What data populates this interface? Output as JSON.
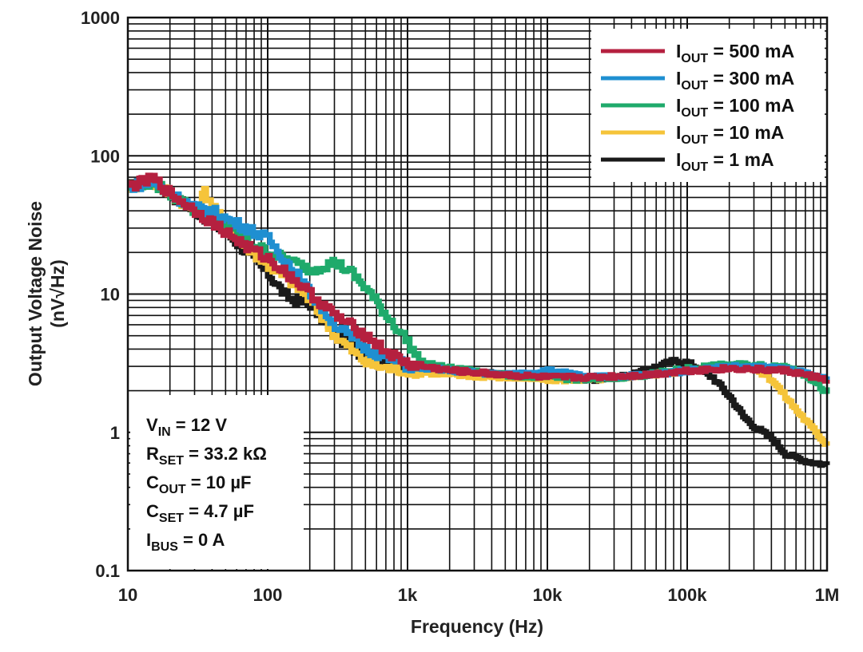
{
  "chart_data": {
    "type": "line",
    "xscale": "log",
    "yscale": "log",
    "xlim": [
      10,
      1000000
    ],
    "ylim": [
      0.1,
      1000
    ],
    "grid": true,
    "legend_position": "top-right",
    "xlabel": "Frequency (Hz)",
    "ylabel_line1": "Output Voltage Noise",
    "ylabel_line2_pre": "(nV",
    "ylabel_line2_post": "Hz)",
    "x_ticks": [
      {
        "value": 10,
        "label": "10"
      },
      {
        "value": 100,
        "label": "100"
      },
      {
        "value": 1000,
        "label": "1k"
      },
      {
        "value": 10000,
        "label": "10k"
      },
      {
        "value": 100000,
        "label": "100k"
      },
      {
        "value": 1000000,
        "label": "1M"
      }
    ],
    "y_ticks": [
      {
        "value": 0.1,
        "label": "0.1"
      },
      {
        "value": 1,
        "label": "1"
      },
      {
        "value": 10,
        "label": "10"
      },
      {
        "value": 100,
        "label": "100"
      },
      {
        "value": 1000,
        "label": "1000"
      }
    ],
    "series": [
      {
        "name": "IOUT = 1 mA",
        "name_main": "I",
        "name_sub": "OUT",
        "name_rest": " = 1 mA",
        "color": "#1a1a1a",
        "x": [
          10,
          15,
          20,
          30,
          50,
          70,
          100,
          130,
          150,
          200,
          300,
          500,
          700,
          1000,
          2000,
          5000,
          10000,
          20000,
          40000,
          60000,
          80000,
          100000,
          150000,
          200000,
          250000,
          300000,
          400000,
          500000,
          700000,
          1000000
        ],
        "y": [
          60,
          65,
          52,
          40,
          28,
          20,
          14,
          10,
          9,
          8.5,
          5,
          3.5,
          3.2,
          2.9,
          2.8,
          2.6,
          2.5,
          2.4,
          2.6,
          3.0,
          3.3,
          3.2,
          2.5,
          1.8,
          1.3,
          1.1,
          0.9,
          0.7,
          0.62,
          0.58
        ]
      },
      {
        "name": "IOUT = 10 mA",
        "name_main": "I",
        "name_sub": "OUT",
        "name_rest": " = 10 mA",
        "color": "#f5c43a",
        "x": [
          10,
          15,
          20,
          30,
          35,
          50,
          70,
          100,
          150,
          200,
          300,
          500,
          700,
          1000,
          2000,
          5000,
          10000,
          20000,
          50000,
          100000,
          200000,
          300000,
          400000,
          500000,
          700000,
          1000000
        ],
        "y": [
          60,
          64,
          53,
          40,
          55,
          30,
          22,
          16,
          12,
          9,
          5,
          3.2,
          2.9,
          2.8,
          2.6,
          2.5,
          2.4,
          2.4,
          2.6,
          2.8,
          3.0,
          2.9,
          2.4,
          1.8,
          1.2,
          0.8
        ]
      },
      {
        "name": "IOUT = 100 mA",
        "name_main": "I",
        "name_sub": "OUT",
        "name_rest": " = 100 mA",
        "color": "#1faa6b",
        "x": [
          10,
          15,
          20,
          30,
          50,
          70,
          100,
          150,
          200,
          300,
          400,
          500,
          700,
          1000,
          1200,
          2000,
          5000,
          10000,
          20000,
          50000,
          100000,
          200000,
          500000,
          700000,
          1000000
        ],
        "y": [
          60,
          64,
          53,
          40,
          32,
          24,
          20,
          17,
          15,
          17,
          14,
          11,
          7,
          4.5,
          3.2,
          2.9,
          2.6,
          2.5,
          2.4,
          2.6,
          2.9,
          3.1,
          3.0,
          2.6,
          1.9
        ]
      },
      {
        "name": "IOUT = 300 mA",
        "name_main": "I",
        "name_sub": "OUT",
        "name_rest": " = 300 mA",
        "color": "#1f8fd1",
        "x": [
          10,
          15,
          20,
          30,
          40,
          50,
          70,
          100,
          150,
          200,
          300,
          500,
          700,
          1000,
          2000,
          5000,
          10000,
          20000,
          50000,
          100000,
          200000,
          500000,
          1000000
        ],
        "y": [
          60,
          64,
          53,
          42,
          40,
          35,
          30,
          25,
          15,
          10,
          6,
          4,
          3.5,
          3.0,
          2.8,
          2.6,
          2.8,
          2.5,
          2.6,
          2.8,
          3.0,
          2.9,
          2.4
        ]
      },
      {
        "name": "IOUT = 500 mA",
        "name_main": "I",
        "name_sub": "OUT",
        "name_rest": " = 500 mA",
        "color": "#b5203f",
        "x": [
          10,
          15,
          20,
          30,
          50,
          70,
          100,
          150,
          200,
          300,
          500,
          700,
          1000,
          2000,
          5000,
          10000,
          20000,
          50000,
          100000,
          200000,
          500000,
          1000000
        ],
        "y": [
          60,
          68,
          53,
          40,
          28,
          22,
          18,
          13,
          10,
          7,
          5,
          3.8,
          3.1,
          2.8,
          2.6,
          2.5,
          2.5,
          2.6,
          2.8,
          2.9,
          2.8,
          2.4
        ]
      }
    ],
    "legend_order": [
      4,
      3,
      2,
      1,
      0
    ],
    "conditions": [
      {
        "main": "V",
        "sub": "IN",
        "rest": " = 12 V"
      },
      {
        "main": "R",
        "sub": "SET",
        "rest": " = 33.2 kΩ"
      },
      {
        "main": "C",
        "sub": "OUT",
        "rest": " = 10 µF"
      },
      {
        "main": "C",
        "sub": "SET",
        "rest": " = 4.7 µF"
      },
      {
        "main": "I",
        "sub": "BUS",
        "rest": " = 0 A"
      }
    ]
  }
}
